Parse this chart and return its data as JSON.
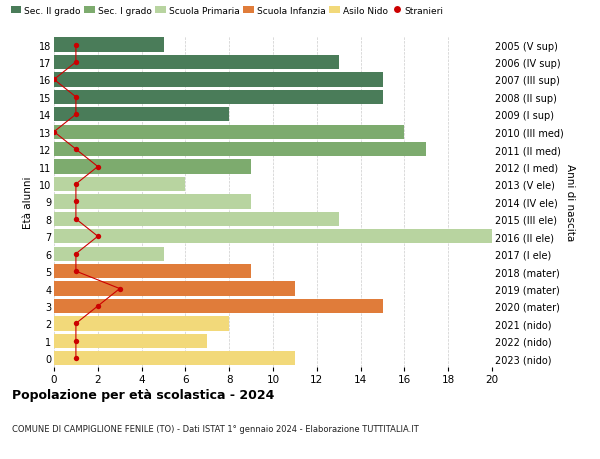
{
  "ages": [
    18,
    17,
    16,
    15,
    14,
    13,
    12,
    11,
    10,
    9,
    8,
    7,
    6,
    5,
    4,
    3,
    2,
    1,
    0
  ],
  "right_labels": [
    "2005 (V sup)",
    "2006 (IV sup)",
    "2007 (III sup)",
    "2008 (II sup)",
    "2009 (I sup)",
    "2010 (III med)",
    "2011 (II med)",
    "2012 (I med)",
    "2013 (V ele)",
    "2014 (IV ele)",
    "2015 (III ele)",
    "2016 (II ele)",
    "2017 (I ele)",
    "2018 (mater)",
    "2019 (mater)",
    "2020 (mater)",
    "2021 (nido)",
    "2022 (nido)",
    "2023 (nido)"
  ],
  "bar_values": [
    5,
    13,
    15,
    15,
    8,
    16,
    17,
    9,
    6,
    9,
    13,
    20,
    5,
    9,
    11,
    15,
    8,
    7,
    11
  ],
  "stranieri": [
    1,
    1,
    0,
    1,
    1,
    0,
    1,
    2,
    1,
    1,
    1,
    2,
    1,
    1,
    3,
    2,
    1,
    1,
    1
  ],
  "bar_colors": [
    "#4a7c59",
    "#4a7c59",
    "#4a7c59",
    "#4a7c59",
    "#4a7c59",
    "#7dab6e",
    "#7dab6e",
    "#7dab6e",
    "#b8d4a0",
    "#b8d4a0",
    "#b8d4a0",
    "#b8d4a0",
    "#b8d4a0",
    "#e07c3a",
    "#e07c3a",
    "#e07c3a",
    "#f2d97a",
    "#f2d97a",
    "#f2d97a"
  ],
  "legend_labels": [
    "Sec. II grado",
    "Sec. I grado",
    "Scuola Primaria",
    "Scuola Infanzia",
    "Asilo Nido",
    "Stranieri"
  ],
  "legend_colors": [
    "#4a7c59",
    "#7dab6e",
    "#b8d4a0",
    "#e07c3a",
    "#f2d97a",
    "#cc0000"
  ],
  "title": "Popolazione per età scolastica - 2024",
  "subtitle": "COMUNE DI CAMPIGLIONE FENILE (TO) - Dati ISTAT 1° gennaio 2024 - Elaborazione TUTTITALIA.IT",
  "xlim": [
    0,
    20
  ],
  "bg_color": "#ffffff",
  "grid_color": "#cccccc",
  "stranieri_color": "#cc0000"
}
